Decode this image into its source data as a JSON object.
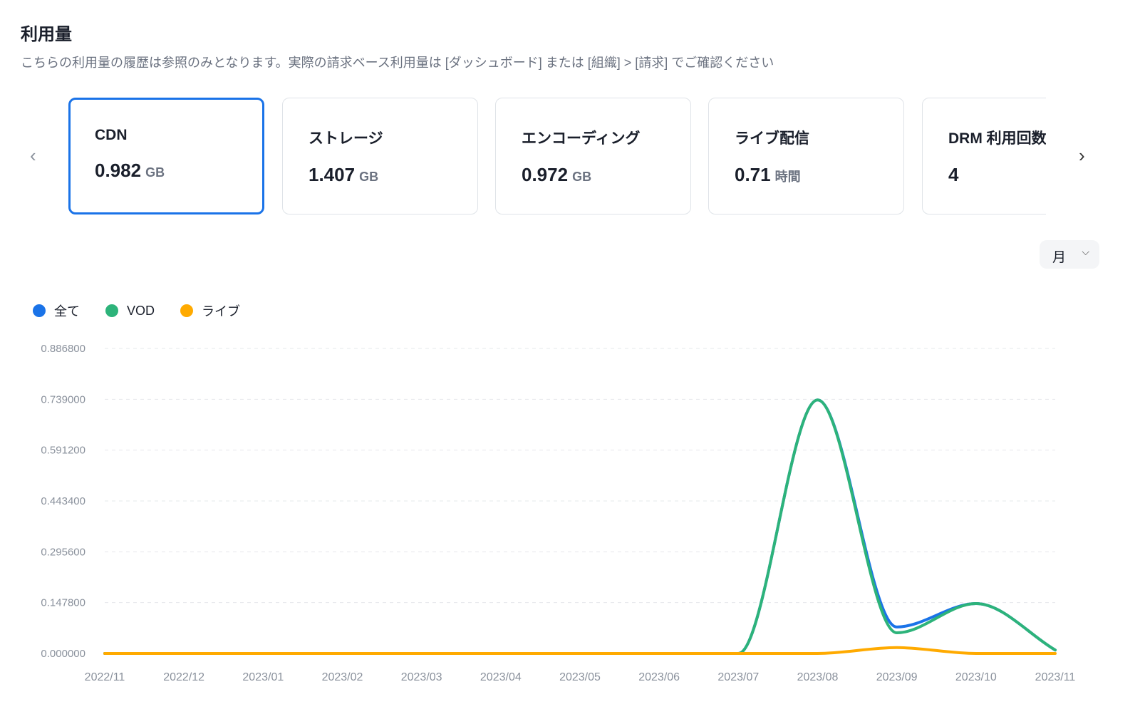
{
  "header": {
    "title": "利用量",
    "subtitle": "こちらの利用量の履歴は参照のみとなります。実際の請求ベース利用量は [ダッシュボード] または [組織] > [請求] でご確認ください"
  },
  "carousel": {
    "prev_icon": "chevron-left-icon",
    "next_icon": "chevron-right-icon",
    "prev": "‹",
    "next": "›",
    "cards": [
      {
        "label": "CDN",
        "value": "0.982",
        "unit": "GB",
        "selected": true
      },
      {
        "label": "ストレージ",
        "value": "1.407",
        "unit": "GB"
      },
      {
        "label": "エンコーディング",
        "value": "0.972",
        "unit": "GB"
      },
      {
        "label": "ライブ配信",
        "value": "0.71",
        "unit": "時間"
      },
      {
        "label": "DRM 利用回数",
        "value": "4",
        "unit": ""
      }
    ]
  },
  "period_select": {
    "value": "月",
    "icon": "chevron-down-icon"
  },
  "colors": {
    "all": "#1a73e8",
    "vod": "#2db37a",
    "live": "#ffaa00"
  },
  "chart_data": {
    "type": "line",
    "x": [
      "2022/11",
      "2022/12",
      "2023/01",
      "2023/02",
      "2023/03",
      "2023/04",
      "2023/05",
      "2023/06",
      "2023/07",
      "2023/08",
      "2023/09",
      "2023/10",
      "2023/11"
    ],
    "yticks": [
      "0.000000",
      "0.147800",
      "0.295600",
      "0.443400",
      "0.591200",
      "0.739000",
      "0.886800"
    ],
    "ylim": [
      0,
      0.8868
    ],
    "grid": true,
    "legend_position": "top-left",
    "series": [
      {
        "name": "全て",
        "color": "#1a73e8",
        "values": [
          0,
          0,
          0,
          0,
          0,
          0,
          0,
          0,
          0,
          0.737,
          0.077,
          0.145,
          0.01
        ]
      },
      {
        "name": "VOD",
        "color": "#2db37a",
        "values": [
          0,
          0,
          0,
          0,
          0,
          0,
          0,
          0,
          0,
          0.737,
          0.06,
          0.145,
          0.01
        ]
      },
      {
        "name": "ライブ",
        "color": "#ffaa00",
        "values": [
          0,
          0,
          0,
          0,
          0,
          0,
          0,
          0,
          0,
          0,
          0.017,
          0,
          0
        ]
      }
    ]
  }
}
